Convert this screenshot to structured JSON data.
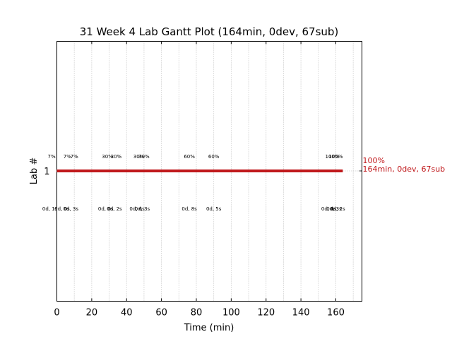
{
  "chart_data": {
    "type": "gantt",
    "title": "31 Week 4 Lab Gantt Plot (164min, 0dev, 67sub)",
    "xlabel": "Time (min)",
    "ylabel": "Lab #",
    "xlim": [
      0,
      175
    ],
    "x_ticks": [
      0,
      20,
      40,
      60,
      80,
      100,
      120,
      140,
      160
    ],
    "y_ticks": [
      "1"
    ],
    "grid": "vertical dotted every 10 min",
    "bar": {
      "lab": "1",
      "start": 0,
      "end": 164,
      "color": "#c0191c"
    },
    "end_annotation": {
      "percent": "100%",
      "summary": "164min, 0dev, 67sub"
    },
    "percent_markers": [
      {
        "x": -3,
        "text": "7%"
      },
      {
        "x": 6,
        "text": "7%"
      },
      {
        "x": 10,
        "text": "7%"
      },
      {
        "x": 29,
        "text": "30%"
      },
      {
        "x": 34,
        "text": "30%"
      },
      {
        "x": 47,
        "text": "30%"
      },
      {
        "x": 50,
        "text": "30%"
      },
      {
        "x": 76,
        "text": "60%"
      },
      {
        "x": 90,
        "text": "60%"
      },
      {
        "x": 158,
        "text": "100%"
      },
      {
        "x": 160,
        "text": "100%"
      }
    ],
    "time_markers": [
      {
        "x": -4,
        "text": "0d, 1s"
      },
      {
        "x": 3,
        "text": "0d, 0s"
      },
      {
        "x": 8,
        "text": "0d, 3s"
      },
      {
        "x": 28,
        "text": "0d, 0s"
      },
      {
        "x": 33,
        "text": "0d, 2s"
      },
      {
        "x": 46,
        "text": "0d, 6s"
      },
      {
        "x": 49,
        "text": "0d, 3s"
      },
      {
        "x": 76,
        "text": "0d, 8s"
      },
      {
        "x": 90,
        "text": "0d, 5s"
      },
      {
        "x": 156,
        "text": "0d, 0s"
      },
      {
        "x": 159,
        "text": "0d, 3s"
      },
      {
        "x": 161,
        "text": "0d, 2s"
      }
    ]
  }
}
